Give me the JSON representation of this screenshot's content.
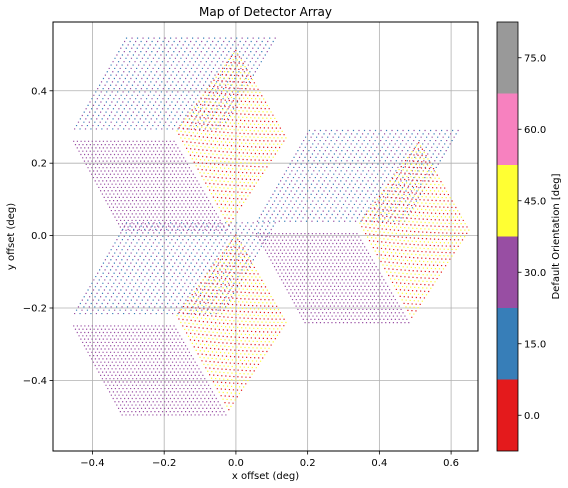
{
  "chart_data": {
    "type": "scatter",
    "title": "Map of Detector Array",
    "xlabel": "x offset (deg)",
    "ylabel": "y offset (deg)",
    "xlim": [
      -0.51,
      0.675
    ],
    "ylim": [
      -0.595,
      0.59
    ],
    "xticks": [
      -0.4,
      -0.2,
      0.0,
      0.2,
      0.4,
      0.6
    ],
    "xtick_labels": [
      "−0.4",
      "−0.2",
      "0.0",
      "0.2",
      "0.4",
      "0.6"
    ],
    "yticks": [
      -0.4,
      -0.2,
      0.0,
      0.2,
      0.4
    ],
    "ytick_labels": [
      "−0.4",
      "−0.2",
      "0.0",
      "0.2",
      "0.4"
    ],
    "grid": true,
    "colorbar": {
      "label": "Default Orientation [deg]",
      "range": [
        -7.5,
        82.5
      ],
      "ticks": [
        0.0,
        15.0,
        30.0,
        45.0,
        60.0,
        75.0
      ],
      "tick_labels": [
        "0.0",
        "15.0",
        "30.0",
        "45.0",
        "60.0",
        "75.0"
      ],
      "colors": [
        "#e41a1c",
        "#377eb8",
        "#984ea3",
        "#ffff33",
        "#f781bf",
        "#999999"
      ]
    },
    "wafer_centers": [
      [
        -0.17,
        0.255
      ],
      [
        -0.17,
        -0.255
      ],
      [
        0.34,
        0.0
      ]
    ],
    "rhombi": [
      {
        "orientation": "left-sheared-horizontal",
        "vertices": [
          [
            -0.46,
            0.29
          ],
          [
            -0.035,
            0.29
          ],
          [
            0.12,
            0.55
          ],
          [
            -0.31,
            0.55
          ]
        ],
        "pixel_colors": [
          "#984ea3",
          "#377eb8"
        ]
      },
      {
        "orientation": "right-sheared-horizontal",
        "vertices": [
          [
            -0.46,
            0.265
          ],
          [
            -0.17,
            0.265
          ],
          [
            -0.02,
            0.01
          ],
          [
            -0.32,
            0.01
          ]
        ],
        "pixel_colors": [
          "#984ea3"
        ]
      },
      {
        "orientation": "vertical",
        "vertices": [
          [
            -0.17,
            0.29
          ],
          [
            0.0,
            0.52
          ],
          [
            0.145,
            0.27
          ],
          [
            -0.02,
            0.02
          ]
        ],
        "pixel_colors": [
          "#ffff33",
          "#e41a1c"
        ]
      }
    ]
  }
}
